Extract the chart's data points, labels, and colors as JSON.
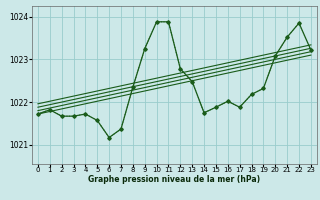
{
  "title": "Graphe pression niveau de la mer (hPa)",
  "bg_color": "#cce8e8",
  "grid_color": "#99cccc",
  "line_color": "#1a5c1a",
  "xlim": [
    -0.5,
    23.5
  ],
  "ylim": [
    1020.55,
    1024.25
  ],
  "yticks": [
    1021,
    1022,
    1023,
    1024
  ],
  "xticks": [
    0,
    1,
    2,
    3,
    4,
    5,
    6,
    7,
    8,
    9,
    10,
    11,
    12,
    13,
    14,
    15,
    16,
    17,
    18,
    19,
    20,
    21,
    22,
    23
  ],
  "main_data": [
    [
      0,
      1021.72
    ],
    [
      1,
      1021.82
    ],
    [
      2,
      1021.67
    ],
    [
      3,
      1021.67
    ],
    [
      4,
      1021.72
    ],
    [
      5,
      1021.57
    ],
    [
      6,
      1021.17
    ],
    [
      7,
      1021.37
    ],
    [
      8,
      1022.35
    ],
    [
      9,
      1023.25
    ],
    [
      10,
      1023.88
    ],
    [
      11,
      1023.88
    ],
    [
      12,
      1022.78
    ],
    [
      13,
      1022.48
    ],
    [
      14,
      1021.75
    ],
    [
      15,
      1021.88
    ],
    [
      16,
      1022.02
    ],
    [
      17,
      1021.88
    ],
    [
      18,
      1022.18
    ],
    [
      19,
      1022.32
    ],
    [
      20,
      1023.08
    ],
    [
      21,
      1023.52
    ],
    [
      22,
      1023.85
    ],
    [
      23,
      1023.22
    ]
  ],
  "dotted_data": [
    [
      0,
      1021.72
    ],
    [
      1,
      1021.82
    ],
    [
      2,
      1021.67
    ],
    [
      3,
      1021.67
    ],
    [
      4,
      1021.72
    ],
    [
      5,
      1021.57
    ],
    [
      6,
      1021.17
    ],
    [
      7,
      1021.37
    ],
    [
      8,
      1022.35
    ],
    [
      9,
      1023.25
    ],
    [
      10,
      1023.88
    ],
    [
      11,
      1023.88
    ],
    [
      12,
      1022.78
    ],
    [
      13,
      1022.48
    ],
    [
      14,
      1021.75
    ],
    [
      15,
      1021.88
    ],
    [
      16,
      1022.02
    ],
    [
      17,
      1021.88
    ],
    [
      18,
      1022.18
    ],
    [
      19,
      1022.32
    ],
    [
      20,
      1023.08
    ],
    [
      21,
      1023.52
    ],
    [
      22,
      1023.85
    ],
    [
      23,
      1023.22
    ]
  ],
  "trend_lines": [
    [
      [
        0,
        1021.72
      ],
      [
        23,
        1023.1
      ]
    ],
    [
      [
        0,
        1021.8
      ],
      [
        23,
        1023.18
      ]
    ],
    [
      [
        0,
        1021.88
      ],
      [
        23,
        1023.26
      ]
    ],
    [
      [
        0,
        1021.96
      ],
      [
        23,
        1023.34
      ]
    ]
  ]
}
